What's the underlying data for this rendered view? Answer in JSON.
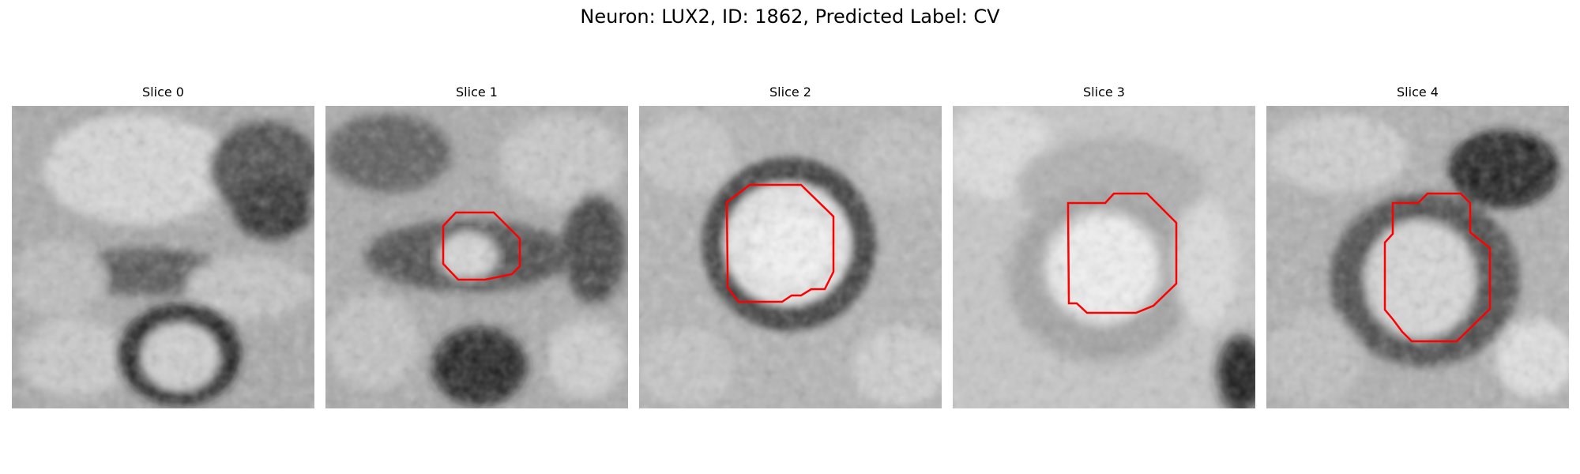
{
  "figure": {
    "title": "Neuron: LUX2, ID: 1862, Predicted Label: CV"
  },
  "colors": {
    "contour": "#ff0000",
    "colormap": "grayscale"
  },
  "slices": [
    {
      "label": "Slice 0"
    },
    {
      "label": "Slice 1"
    },
    {
      "label": "Slice 2"
    },
    {
      "label": "Slice 3"
    },
    {
      "label": "Slice 4"
    }
  ]
}
